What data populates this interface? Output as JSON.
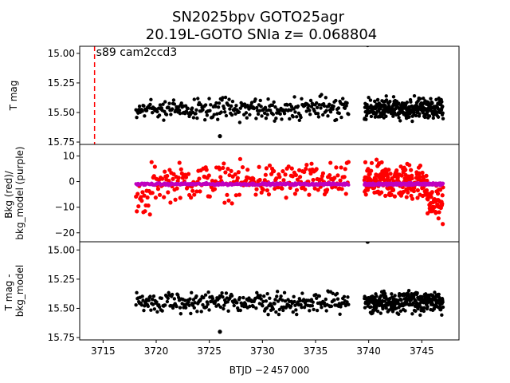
{
  "chart_data": {
    "type": "scatter",
    "title_line1": "SN2025bpv  GOTO25agr",
    "title_line2": "20.19L-GOTO SNIa z= 0.068804",
    "xlabel": "BTJD −2 457 000",
    "xlim": [
      3712.8,
      3748.5
    ],
    "xticks": [
      3715,
      3720,
      3725,
      3730,
      3735,
      3740,
      3745
    ],
    "annotation": "s89 cam2ccd3",
    "marker_x": 3714.2,
    "marker_color": "#ff0000",
    "data_segments": [
      [
        3718.1,
        3738.1
      ],
      [
        3739.6,
        3747.0
      ]
    ],
    "panels": [
      {
        "name": "t-mag",
        "ylabel": "T mag",
        "ylim": [
          15.77,
          14.94
        ],
        "yticks": [
          15.0,
          15.25,
          15.5,
          15.75
        ],
        "ytick_labels": [
          "15.00",
          "15.25",
          "15.50",
          "15.75"
        ],
        "series": [
          {
            "color": "#000000",
            "center": 15.47,
            "spread": 0.1,
            "outliers": [
              [
                3726.0,
                15.7
              ],
              [
                3739.9,
                14.93
              ]
            ]
          }
        ]
      },
      {
        "name": "background",
        "ylabel_line1": "Bkg (red)/",
        "ylabel_line2": "bkg_model (purple)",
        "ylim": [
          -23.5,
          14.5
        ],
        "yticks": [
          -20,
          -10,
          0,
          10
        ],
        "ytick_labels": [
          "−20",
          "−10",
          "0",
          "10"
        ],
        "series": [
          {
            "color": "#ff0000",
            "center": 0,
            "spread": 8
          },
          {
            "color": "#bf00bf",
            "center": -1,
            "spread": 0.5
          }
        ]
      },
      {
        "name": "t-mag-minus-model",
        "ylabel_line1": "T mag -",
        "ylabel_line2": "bkg_model",
        "ylim": [
          15.77,
          14.93
        ],
        "yticks": [
          15.0,
          15.25,
          15.5,
          15.75
        ],
        "ytick_labels": [
          "15.00",
          "15.25",
          "15.50",
          "15.75"
        ],
        "series": [
          {
            "color": "#000000",
            "center": 15.45,
            "spread": 0.1,
            "outliers": [
              [
                3726.0,
                15.7
              ],
              [
                3739.9,
                14.93
              ]
            ]
          }
        ]
      }
    ]
  }
}
